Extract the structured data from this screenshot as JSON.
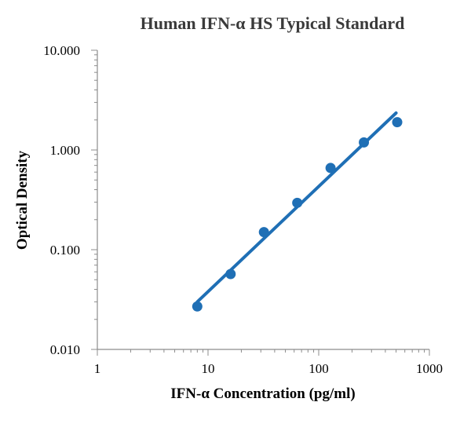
{
  "chart_data": {
    "type": "scatter",
    "title": "Human IFN-α HS Typical Standard",
    "xlabel": "IFN-α Concentration (pg/ml)",
    "ylabel": "Optical Density",
    "x_scale": "log",
    "y_scale": "log",
    "xlim": [
      1,
      1000
    ],
    "ylim": [
      0.01,
      10
    ],
    "x_ticks": [
      1,
      10,
      100,
      1000
    ],
    "x_tick_labels": [
      "1",
      "10",
      "100",
      "1000"
    ],
    "y_ticks": [
      0.01,
      0.1,
      1,
      10
    ],
    "y_tick_labels": [
      "0.010",
      "0.100",
      "1.000",
      "10.000"
    ],
    "grid": false,
    "legend": "none",
    "colors": {
      "marker": "#1f6fb5",
      "line": "#1f6fb5",
      "axis": "#8c8c8c",
      "title": "#3a3a3a"
    },
    "series": [
      {
        "x": [
          8,
          16,
          32,
          64,
          128,
          256,
          512
        ],
        "y": [
          0.027,
          0.057,
          0.15,
          0.295,
          0.66,
          1.19,
          1.9
        ]
      }
    ],
    "trendline": {
      "type": "power",
      "x": [
        8,
        500
      ],
      "y": [
        0.03,
        2.35
      ]
    }
  }
}
